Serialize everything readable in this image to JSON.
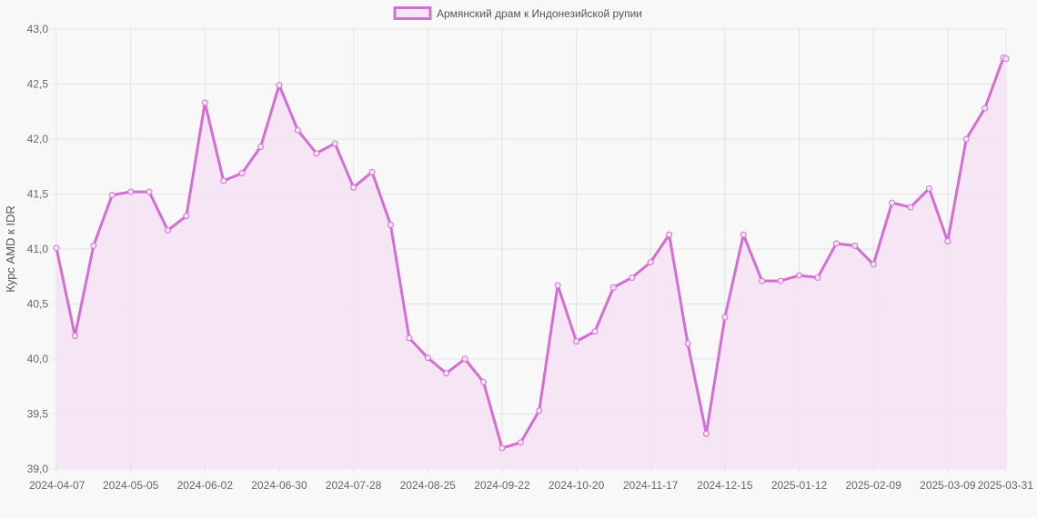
{
  "chart_data": {
    "type": "line",
    "legend": {
      "label": "Армянский драм к Индонезийской рупии",
      "position": "top-center"
    },
    "ylabel": "Курс AMD к IDR",
    "xlabel": "",
    "ylim": [
      39.0,
      43.0
    ],
    "y_ticks": [
      "39,0",
      "39,5",
      "40,0",
      "40,5",
      "41,0",
      "41,5",
      "42,0",
      "42,5",
      "43,0"
    ],
    "x_tick_labels": [
      "2024-04-07",
      "2024-05-05",
      "2024-06-02",
      "2024-06-30",
      "2024-07-28",
      "2024-08-25",
      "2024-09-22",
      "2024-10-20",
      "2024-11-17",
      "2024-12-15",
      "2025-01-12",
      "2025-02-09",
      "2025-03-09",
      "2025-03-31"
    ],
    "grid": true,
    "colors": {
      "line": "#d46ed4",
      "fill": "#f6e3f4",
      "grid": "#e3e3e3",
      "background": "#f8f8f8"
    },
    "series": [
      {
        "name": "Армянский драм к Индонезийской рупии",
        "x": [
          "2024-04-07",
          "2024-04-14",
          "2024-04-21",
          "2024-04-28",
          "2024-05-05",
          "2024-05-12",
          "2024-05-19",
          "2024-05-26",
          "2024-06-02",
          "2024-06-09",
          "2024-06-16",
          "2024-06-23",
          "2024-06-30",
          "2024-07-07",
          "2024-07-14",
          "2024-07-21",
          "2024-07-28",
          "2024-08-04",
          "2024-08-11",
          "2024-08-18",
          "2024-08-25",
          "2024-09-01",
          "2024-09-08",
          "2024-09-15",
          "2024-09-22",
          "2024-09-29",
          "2024-10-06",
          "2024-10-13",
          "2024-10-20",
          "2024-10-27",
          "2024-11-03",
          "2024-11-10",
          "2024-11-17",
          "2024-11-24",
          "2024-12-01",
          "2024-12-08",
          "2024-12-15",
          "2024-12-22",
          "2024-12-29",
          "2025-01-05",
          "2025-01-12",
          "2025-01-19",
          "2025-01-26",
          "2025-02-02",
          "2025-02-09",
          "2025-02-16",
          "2025-02-23",
          "2025-03-02",
          "2025-03-09",
          "2025-03-16",
          "2025-03-23",
          "2025-03-30",
          "2025-03-31"
        ],
        "values": [
          41.01,
          40.21,
          41.03,
          41.49,
          41.52,
          41.52,
          41.17,
          41.3,
          42.33,
          41.62,
          41.69,
          41.93,
          42.49,
          42.08,
          41.87,
          41.96,
          41.56,
          41.7,
          41.22,
          40.19,
          40.01,
          39.87,
          40.0,
          39.79,
          39.19,
          39.24,
          39.53,
          40.67,
          40.16,
          40.25,
          40.65,
          40.74,
          40.88,
          41.13,
          40.14,
          39.32,
          40.38,
          41.13,
          40.71,
          40.71,
          40.76,
          40.74,
          41.05,
          41.03,
          40.86,
          41.42,
          41.38,
          41.55,
          41.07,
          42.0,
          42.28,
          42.74,
          42.73
        ]
      }
    ]
  }
}
